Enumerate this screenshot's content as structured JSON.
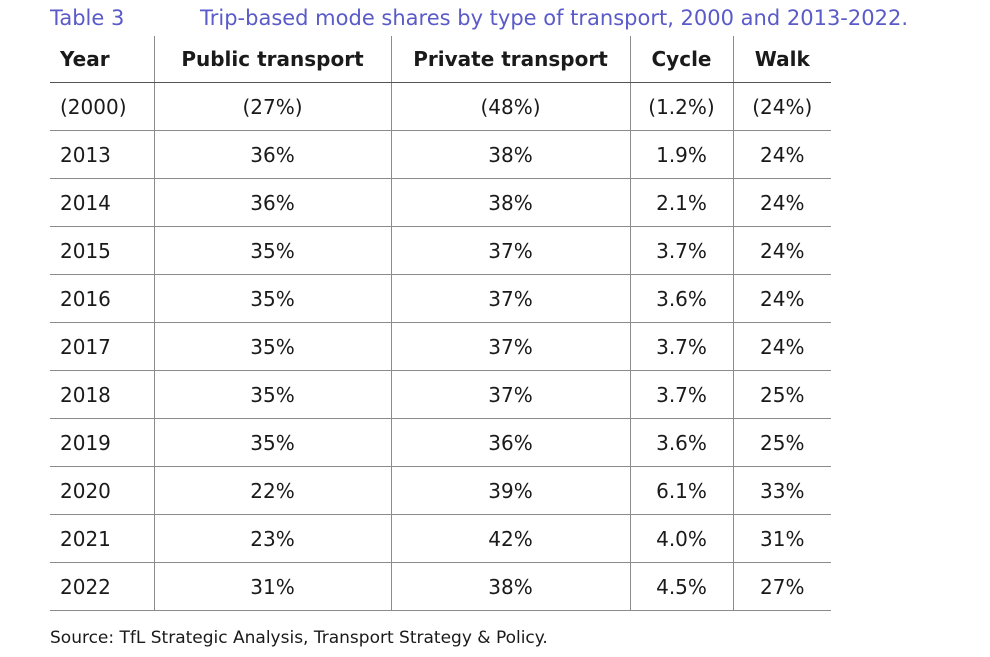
{
  "caption": {
    "label": "Table 3",
    "title": "Trip-based mode shares by type of transport, 2000 and 2013-2022."
  },
  "table": {
    "headers": [
      "Year",
      "Public transport",
      "Private transport",
      "Cycle",
      "Walk"
    ],
    "rows": [
      [
        "(2000)",
        "(27%)",
        "(48%)",
        "(1.2%)",
        "(24%)"
      ],
      [
        "2013",
        "36%",
        "38%",
        "1.9%",
        "24%"
      ],
      [
        "2014",
        "36%",
        "38%",
        "2.1%",
        "24%"
      ],
      [
        "2015",
        "35%",
        "37%",
        "3.7%",
        "24%"
      ],
      [
        "2016",
        "35%",
        "37%",
        "3.6%",
        "24%"
      ],
      [
        "2017",
        "35%",
        "37%",
        "3.7%",
        "24%"
      ],
      [
        "2018",
        "35%",
        "37%",
        "3.7%",
        "25%"
      ],
      [
        "2019",
        "35%",
        "36%",
        "3.6%",
        "25%"
      ],
      [
        "2020",
        "22%",
        "39%",
        "6.1%",
        "33%"
      ],
      [
        "2021",
        "23%",
        "42%",
        "4.0%",
        "31%"
      ],
      [
        "2022",
        "31%",
        "38%",
        "4.5%",
        "27%"
      ]
    ]
  },
  "source": "Source: TfL Strategic Analysis, Transport Strategy & Policy.",
  "colors": {
    "caption": "#5a5ac8",
    "rule": "#8c8c8c"
  }
}
